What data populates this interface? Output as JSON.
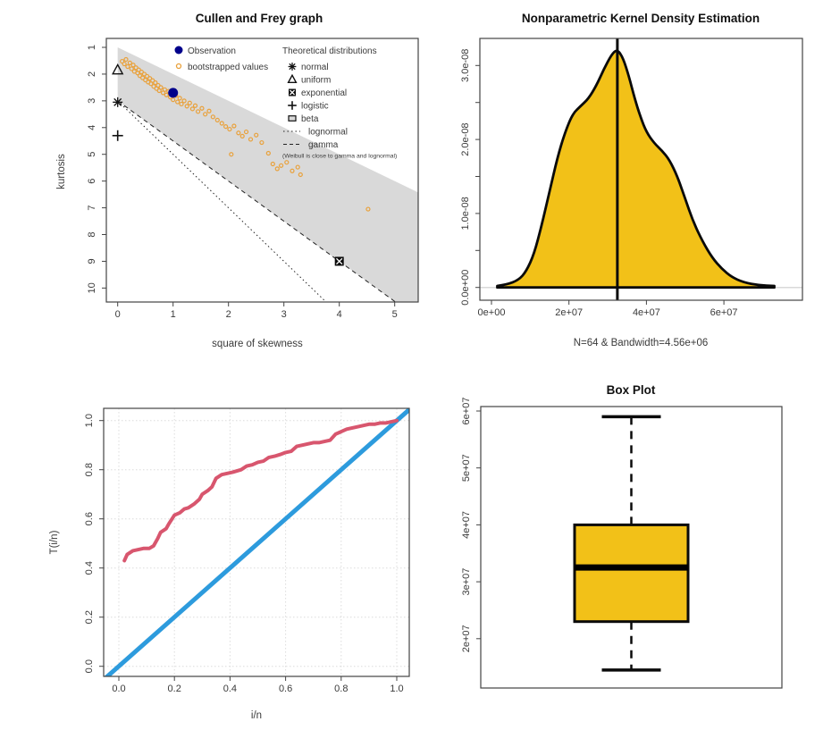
{
  "palette": {
    "orange": "#E9A13B",
    "dark_blue": "#00008B",
    "region_gray": "#D9D9D9",
    "gold": "#F2C118",
    "red": "#D8566E",
    "blue": "#2D9BDD",
    "axis_text": "#3a3a3a",
    "frame": "#444444",
    "grid": "#DCDCDC",
    "black": "#0a0a0a"
  },
  "chart_data": [
    {
      "id": "cullen-frey",
      "type": "scatter",
      "title": "Cullen and Frey graph",
      "xlabel": "square of skewness",
      "ylabel": "kurtosis",
      "xlim": [
        -0.2,
        5.42
      ],
      "ylim": [
        0.67,
        10.52
      ],
      "y_axis_reversed": true,
      "x_ticks": {
        "values": [
          0,
          1,
          2,
          3,
          4,
          5
        ],
        "labels": [
          "0",
          "1",
          "2",
          "3",
          "4",
          "5"
        ]
      },
      "y_ticks": {
        "values": [
          1,
          2,
          3,
          4,
          5,
          6,
          7,
          8,
          9,
          10
        ],
        "labels": [
          "1",
          "2",
          "3",
          "4",
          "5",
          "6",
          "7",
          "8",
          "9",
          "10"
        ]
      },
      "beta_region": {
        "upper_boundary": "kurtosis = 1 + x",
        "lower_boundary": "kurtosis = 3 + 1.5x"
      },
      "gamma_line": {
        "intercept": 3,
        "slope": 1.5,
        "style": "dashed"
      },
      "lognormal_line": {
        "intercept": 3,
        "slope": 2,
        "style": "dotted"
      },
      "observation": {
        "label": "Observation",
        "x": 1.0,
        "kurtosis": 2.7
      },
      "bootstrap": {
        "label": "bootstrapped values",
        "points": [
          [
            0.08,
            1.52
          ],
          [
            0.12,
            1.62
          ],
          [
            0.15,
            1.45
          ],
          [
            0.18,
            1.72
          ],
          [
            0.22,
            1.58
          ],
          [
            0.25,
            1.8
          ],
          [
            0.28,
            1.66
          ],
          [
            0.3,
            1.9
          ],
          [
            0.33,
            1.76
          ],
          [
            0.36,
            1.96
          ],
          [
            0.38,
            1.84
          ],
          [
            0.4,
            2.06
          ],
          [
            0.43,
            1.92
          ],
          [
            0.45,
            2.14
          ],
          [
            0.48,
            2.0
          ],
          [
            0.5,
            2.22
          ],
          [
            0.53,
            2.08
          ],
          [
            0.55,
            2.3
          ],
          [
            0.58,
            2.16
          ],
          [
            0.6,
            2.36
          ],
          [
            0.63,
            2.24
          ],
          [
            0.65,
            2.46
          ],
          [
            0.68,
            2.32
          ],
          [
            0.7,
            2.54
          ],
          [
            0.73,
            2.42
          ],
          [
            0.75,
            2.62
          ],
          [
            0.78,
            2.5
          ],
          [
            0.82,
            2.7
          ],
          [
            0.85,
            2.58
          ],
          [
            0.88,
            2.78
          ],
          [
            0.92,
            2.64
          ],
          [
            0.95,
            2.86
          ],
          [
            1.0,
            2.96
          ],
          [
            1.05,
            2.8
          ],
          [
            1.08,
            3.04
          ],
          [
            1.12,
            2.9
          ],
          [
            1.15,
            3.12
          ],
          [
            1.2,
            3.0
          ],
          [
            1.25,
            3.2
          ],
          [
            1.3,
            3.08
          ],
          [
            1.35,
            3.3
          ],
          [
            1.4,
            3.18
          ],
          [
            1.45,
            3.4
          ],
          [
            1.52,
            3.28
          ],
          [
            1.58,
            3.5
          ],
          [
            1.65,
            3.38
          ],
          [
            1.72,
            3.6
          ],
          [
            1.8,
            3.72
          ],
          [
            1.88,
            3.84
          ],
          [
            1.95,
            3.96
          ],
          [
            2.02,
            4.06
          ],
          [
            2.05,
            5.0
          ],
          [
            2.1,
            3.94
          ],
          [
            2.18,
            4.2
          ],
          [
            2.25,
            4.32
          ],
          [
            2.32,
            4.16
          ],
          [
            2.4,
            4.44
          ],
          [
            2.5,
            4.28
          ],
          [
            2.6,
            4.56
          ],
          [
            2.72,
            4.96
          ],
          [
            2.8,
            5.36
          ],
          [
            2.88,
            5.54
          ],
          [
            2.95,
            5.42
          ],
          [
            3.05,
            5.3
          ],
          [
            3.15,
            5.62
          ],
          [
            3.25,
            5.48
          ],
          [
            3.3,
            5.76
          ],
          [
            4.52,
            7.05
          ]
        ]
      },
      "theoretical": {
        "header": "Theoretical distributions",
        "note": "(Weibull is close to gamma and lognormal)",
        "markers": [
          {
            "label": "normal",
            "marker": "star",
            "x": 0,
            "kurtosis": 3.05
          },
          {
            "label": "uniform",
            "marker": "triangle",
            "x": 0,
            "kurtosis": 1.85
          },
          {
            "label": "exponential",
            "marker": "square-x",
            "x": 4,
            "kurtosis": 9
          },
          {
            "label": "logistic",
            "marker": "plus",
            "x": 0,
            "kurtosis": 4.3
          },
          {
            "label": "beta",
            "marker": "gray-square"
          },
          {
            "label": "lognormal",
            "marker": "dotted-line"
          },
          {
            "label": "gamma",
            "marker": "dashed-line"
          }
        ]
      }
    },
    {
      "id": "kde",
      "type": "area",
      "title": "Nonparametric Kernel Density Estimation",
      "xlabel": "N=64 & Bandwidth=4.56e+06",
      "xlim": [
        -3000000.0,
        80000000.0
      ],
      "ylim": [
        0,
        3.38e-08
      ],
      "x_ticks": {
        "values": [
          0,
          20000000.0,
          40000000.0,
          60000000.0
        ],
        "labels": [
          "0e+00",
          "2e+07",
          "4e+07",
          "6e+07"
        ]
      },
      "y_ticks": {
        "values": [
          0,
          5e-09,
          1e-08,
          1.5e-08,
          2e-08,
          2.5e-08,
          3e-08
        ],
        "labels": [
          "0.0e+00",
          "",
          "1.0e-08",
          "",
          "2.0e-08",
          "",
          "3.0e-08"
        ]
      },
      "median_vline_x": 32500000.0,
      "curve": {
        "x": [
          1500000.0,
          4000000.0,
          7000000.0,
          9000000.0,
          11000000.0,
          13000000.0,
          15000000.0,
          17000000.0,
          19000000.0,
          21000000.0,
          23000000.0,
          25000000.0,
          27000000.0,
          29000000.0,
          31000000.0,
          32500000.0,
          34000000.0,
          35500000.0,
          37000000.0,
          38500000.0,
          40000000.0,
          42000000.0,
          44000000.0,
          46000000.0,
          48000000.0,
          50000000.0,
          52000000.0,
          54500000.0,
          57000000.0,
          59500000.0,
          62000000.0,
          65000000.0,
          69000000.0,
          73000000.0
        ],
        "y": [
          2e-10,
          4e-10,
          1e-09,
          2.2e-09,
          4.5e-09,
          8.5e-09,
          1.3e-08,
          1.75e-08,
          2.1e-08,
          2.35e-08,
          2.45e-08,
          2.55e-08,
          2.72e-08,
          2.95e-08,
          3.15e-08,
          3.22e-08,
          3.1e-08,
          2.85e-08,
          2.55e-08,
          2.3e-08,
          2.1e-08,
          1.95e-08,
          1.85e-08,
          1.72e-08,
          1.5e-08,
          1.2e-08,
          9e-09,
          6.2e-09,
          4e-09,
          2.5e-09,
          1.4e-09,
          7e-10,
          3e-10,
          2e-10
        ]
      }
    },
    {
      "id": "ttt",
      "type": "line",
      "title": "",
      "xlabel": "i/n",
      "ylabel": "T(i/n)",
      "xlim": [
        -0.055,
        1.045
      ],
      "ylim": [
        -0.041,
        1.05
      ],
      "grid": true,
      "x_ticks": {
        "values": [
          0,
          0.2,
          0.4,
          0.6,
          0.8,
          1.0
        ],
        "labels": [
          "0.0",
          "0.2",
          "0.4",
          "0.6",
          "0.8",
          "1.0"
        ]
      },
      "y_ticks": {
        "values": [
          0,
          0.2,
          0.4,
          0.6,
          0.8,
          1.0
        ],
        "labels": [
          "0.0",
          "0.2",
          "0.4",
          "0.6",
          "0.8",
          "1.0"
        ]
      },
      "series": [
        {
          "name": "diagonal reference",
          "color": "blue",
          "points": [
            [
              -0.06,
              -0.06
            ],
            [
              1.06,
              1.06
            ]
          ]
        },
        {
          "name": "TTT curve",
          "color": "red",
          "points": [
            [
              0.02,
              0.43
            ],
            [
              0.03,
              0.455
            ],
            [
              0.05,
              0.47
            ],
            [
              0.07,
              0.475
            ],
            [
              0.09,
              0.48
            ],
            [
              0.11,
              0.48
            ],
            [
              0.125,
              0.49
            ],
            [
              0.14,
              0.52
            ],
            [
              0.15,
              0.545
            ],
            [
              0.17,
              0.56
            ],
            [
              0.18,
              0.58
            ],
            [
              0.2,
              0.615
            ],
            [
              0.22,
              0.625
            ],
            [
              0.235,
              0.64
            ],
            [
              0.25,
              0.645
            ],
            [
              0.27,
              0.66
            ],
            [
              0.29,
              0.68
            ],
            [
              0.3,
              0.7
            ],
            [
              0.32,
              0.715
            ],
            [
              0.335,
              0.73
            ],
            [
              0.35,
              0.765
            ],
            [
              0.37,
              0.78
            ],
            [
              0.39,
              0.785
            ],
            [
              0.41,
              0.79
            ],
            [
              0.44,
              0.8
            ],
            [
              0.46,
              0.815
            ],
            [
              0.48,
              0.82
            ],
            [
              0.5,
              0.83
            ],
            [
              0.52,
              0.835
            ],
            [
              0.54,
              0.85
            ],
            [
              0.56,
              0.855
            ],
            [
              0.58,
              0.862
            ],
            [
              0.6,
              0.87
            ],
            [
              0.62,
              0.875
            ],
            [
              0.64,
              0.895
            ],
            [
              0.66,
              0.9
            ],
            [
              0.68,
              0.905
            ],
            [
              0.7,
              0.91
            ],
            [
              0.72,
              0.91
            ],
            [
              0.74,
              0.915
            ],
            [
              0.76,
              0.92
            ],
            [
              0.78,
              0.945
            ],
            [
              0.8,
              0.955
            ],
            [
              0.82,
              0.965
            ],
            [
              0.84,
              0.97
            ],
            [
              0.86,
              0.975
            ],
            [
              0.88,
              0.98
            ],
            [
              0.9,
              0.985
            ],
            [
              0.92,
              0.985
            ],
            [
              0.94,
              0.99
            ],
            [
              0.96,
              0.99
            ],
            [
              0.98,
              0.995
            ],
            [
              1.0,
              1.0
            ]
          ]
        }
      ]
    },
    {
      "id": "boxplot",
      "type": "boxplot",
      "title": "Box Plot",
      "ylim": [
        11400000.0,
        60800000.0
      ],
      "y_ticks": {
        "values": [
          20000000.0,
          30000000.0,
          40000000.0,
          50000000.0,
          60000000.0
        ],
        "labels": [
          "2e+07",
          "3e+07",
          "4e+07",
          "5e+07",
          "6e+07"
        ]
      },
      "stats": {
        "whisker_low": 14500000.0,
        "q1": 23000000.0,
        "median": 32500000.0,
        "q3": 40000000.0,
        "whisker_high": 59000000.0
      }
    }
  ]
}
